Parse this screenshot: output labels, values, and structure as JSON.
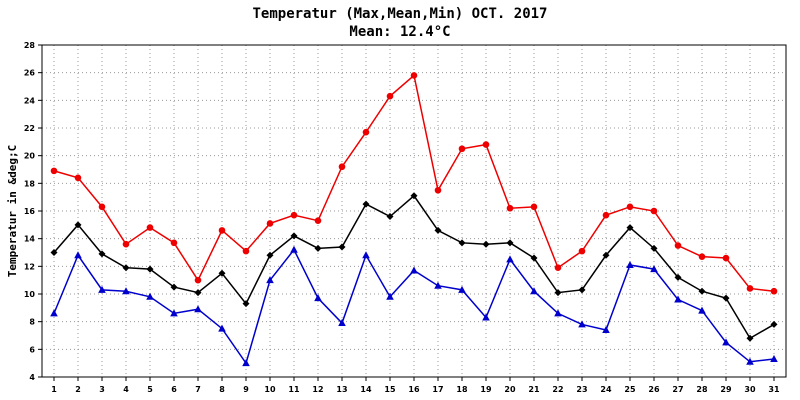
{
  "title_line1": "Temperatur (Max,Mean,Min) OCT. 2017",
  "title_line2": "Mean: 12.4°C",
  "chart_data": {
    "type": "line",
    "title": "Temperatur (Max,Mean,Min) OCT. 2017",
    "subtitle": "Mean: 12.4°C",
    "xlabel": "",
    "ylabel": "Temperatur in &deg;C",
    "ylim": [
      4,
      28
    ],
    "yticks": [
      4,
      6,
      8,
      10,
      12,
      14,
      16,
      18,
      20,
      22,
      24,
      26,
      28
    ],
    "grid": true,
    "categories": [
      "1",
      "2",
      "3",
      "4",
      "5",
      "6",
      "7",
      "8",
      "9",
      "10",
      "11",
      "12",
      "13",
      "14",
      "15",
      "16",
      "17",
      "18",
      "19",
      "20",
      "21",
      "22",
      "23",
      "24",
      "25",
      "26",
      "27",
      "28",
      "29",
      "30",
      "31"
    ],
    "series": [
      {
        "color": "#ee0000",
        "marker": "circle",
        "values": [
          18.9,
          18.4,
          16.3,
          13.6,
          14.8,
          13.7,
          11.0,
          14.6,
          13.1,
          15.1,
          15.7,
          15.3,
          19.2,
          21.7,
          24.3,
          25.8,
          17.5,
          20.5,
          20.8,
          16.2,
          16.3,
          11.9,
          13.1,
          15.7,
          16.3,
          16.0,
          13.5,
          12.7,
          12.6,
          10.4,
          10.2
        ]
      },
      {
        "color": "#000000",
        "marker": "diamond",
        "values": [
          13.0,
          15.0,
          12.9,
          11.9,
          11.8,
          10.5,
          10.1,
          11.5,
          9.3,
          12.8,
          14.2,
          13.3,
          13.4,
          16.5,
          15.6,
          17.1,
          14.6,
          13.7,
          13.6,
          13.7,
          12.6,
          10.1,
          10.3,
          12.8,
          14.8,
          13.3,
          11.2,
          10.2,
          9.7,
          6.8,
          7.8
        ]
      },
      {
        "color": "#0000cc",
        "marker": "triangle",
        "values": [
          8.6,
          12.8,
          10.3,
          10.2,
          9.8,
          8.6,
          8.9,
          7.5,
          5.0,
          11.0,
          13.2,
          9.7,
          7.9,
          12.8,
          9.8,
          11.7,
          10.6,
          10.3,
          8.3,
          12.5,
          10.2,
          8.6,
          7.8,
          7.4,
          12.1,
          11.8,
          9.6,
          8.8,
          6.5,
          5.1,
          5.3
        ]
      }
    ]
  }
}
